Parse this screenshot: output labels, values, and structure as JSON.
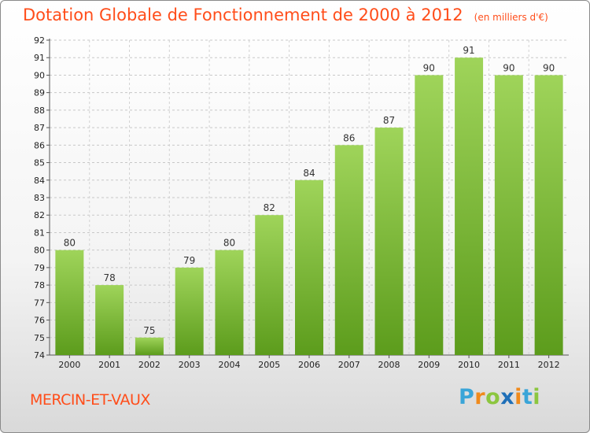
{
  "header": {
    "title": "Dotation Globale de Fonctionnement de 2000 à 2012",
    "unit": "(en milliers d'€)"
  },
  "commune": "MERCIN-ET-VAUX",
  "logo": {
    "text": "Proxiti",
    "letters": [
      "P",
      "r",
      "o",
      "x",
      "i",
      "t",
      "i"
    ],
    "colors": [
      "#3aa5d8",
      "#f08a1c",
      "#8cc63f",
      "#1f6fb8",
      "#f08a1c",
      "#3aa5d8",
      "#8cc63f"
    ]
  },
  "chart_data": {
    "type": "bar",
    "title": "Dotation Globale de Fonctionnement de 2000 à 2012",
    "subtitle": "(en milliers d'€)",
    "categories": [
      "2000",
      "2001",
      "2002",
      "2003",
      "2004",
      "2005",
      "2006",
      "2007",
      "2008",
      "2009",
      "2010",
      "2011",
      "2012"
    ],
    "values": [
      80,
      78,
      75,
      79,
      80,
      82,
      84,
      86,
      87,
      90,
      91,
      90,
      90
    ],
    "ylim": [
      74,
      92
    ],
    "yticks": [
      74,
      75,
      76,
      77,
      78,
      79,
      80,
      81,
      82,
      83,
      84,
      85,
      86,
      87,
      88,
      89,
      90,
      91,
      92
    ],
    "bar_color": "#7cc33a",
    "grid": true
  }
}
